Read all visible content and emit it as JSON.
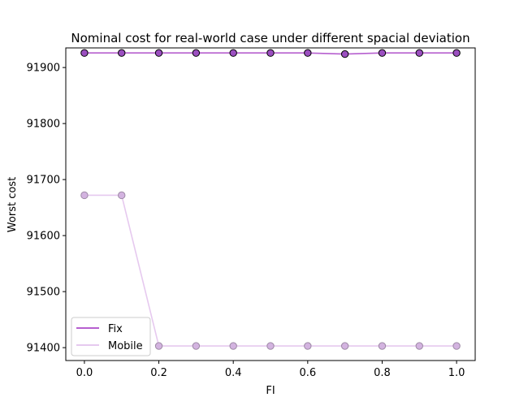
{
  "chart_data": {
    "type": "line",
    "title": "Nominal cost for real-world case under different spacial deviation",
    "xlabel": "FI",
    "ylabel": "Worst cost",
    "xlim": [
      -0.05,
      1.05
    ],
    "ylim": [
      91377,
      91935
    ],
    "xticks": [
      0.0,
      0.2,
      0.4,
      0.6,
      0.8,
      1.0
    ],
    "xtick_labels": [
      "0.0",
      "0.2",
      "0.4",
      "0.6",
      "0.8",
      "1.0"
    ],
    "yticks": [
      91400,
      91500,
      91600,
      91700,
      91800,
      91900
    ],
    "ytick_labels": [
      "91400",
      "91500",
      "91600",
      "91700",
      "91800",
      "91900"
    ],
    "grid": false,
    "legend_position": "lower-left",
    "x": [
      0.0,
      0.1,
      0.2,
      0.3,
      0.4,
      0.5,
      0.6,
      0.7,
      0.8,
      0.9,
      1.0
    ],
    "series": [
      {
        "name": "Fix",
        "line_color": "#b65fcf",
        "marker_fill": "#9b4fc0",
        "marker_edge": "#000000",
        "values": [
          91926,
          91926,
          91926,
          91926,
          91926,
          91926,
          91926,
          91924,
          91926,
          91926,
          91926
        ]
      },
      {
        "name": "Mobile",
        "line_color": "#e6c9ef",
        "marker_fill": "#d3b3e0",
        "marker_edge": "#9e8aa6",
        "values": [
          91672,
          91672,
          91403,
          91403,
          91403,
          91403,
          91403,
          91403,
          91403,
          91403,
          91403
        ]
      }
    ]
  }
}
